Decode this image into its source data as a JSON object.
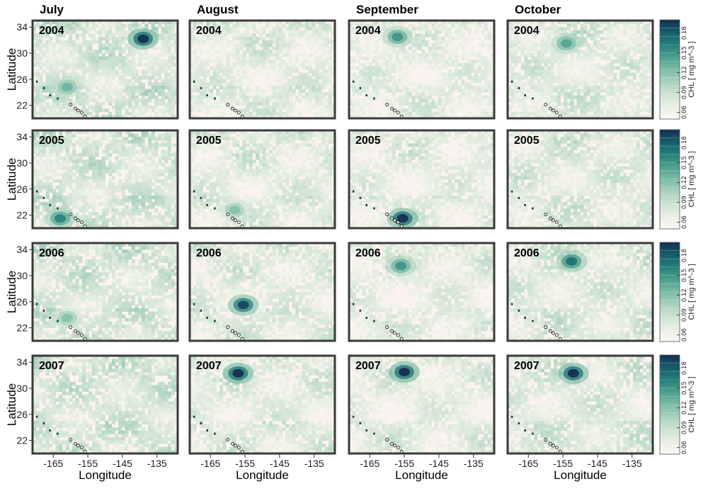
{
  "chart_data": {
    "type": "heatmap",
    "title": "",
    "xlabel": "Longitude",
    "ylabel": "Latitude",
    "columns": [
      "July",
      "August",
      "September",
      "October"
    ],
    "rows": [
      "2004",
      "2005",
      "2006",
      "2007"
    ],
    "xlim": [
      -171,
      -129
    ],
    "ylim": [
      20,
      35
    ],
    "x_ticks": [
      -165,
      -155,
      -145,
      -135
    ],
    "y_ticks": [
      22,
      26,
      30,
      34
    ],
    "colorbar": {
      "title": "CHL [ mg m^-3 ]",
      "ticks": [
        0.06,
        0.09,
        0.12,
        0.15,
        0.18
      ],
      "range": [
        0.05,
        0.2
      ],
      "colors": [
        "#fdf6f3",
        "#e8efe4",
        "#cfe3d2",
        "#a9d1bd",
        "#7cbba6",
        "#4d9f8f",
        "#257f7a",
        "#165d6b",
        "#152e52"
      ]
    },
    "grid": false,
    "blooms": [
      {
        "row": "2004",
        "col": "July",
        "lon": -139,
        "lat": 32.2,
        "chl": 0.2
      },
      {
        "row": "2004",
        "col": "July",
        "lon": -161,
        "lat": 24.8,
        "chl": 0.13
      },
      {
        "row": "2004",
        "col": "September",
        "lon": -157,
        "lat": 32.5,
        "chl": 0.15
      },
      {
        "row": "2004",
        "col": "October",
        "lon": -154,
        "lat": 31.5,
        "chl": 0.14
      },
      {
        "row": "2005",
        "col": "July",
        "lon": -163,
        "lat": 21.5,
        "chl": 0.16
      },
      {
        "row": "2005",
        "col": "August",
        "lon": -158,
        "lat": 22.8,
        "chl": 0.12
      },
      {
        "row": "2005",
        "col": "September",
        "lon": -155.5,
        "lat": 21.5,
        "chl": 0.2
      },
      {
        "row": "2006",
        "col": "July",
        "lon": -161,
        "lat": 23.5,
        "chl": 0.12
      },
      {
        "row": "2006",
        "col": "August",
        "lon": -155.5,
        "lat": 25.5,
        "chl": 0.19
      },
      {
        "row": "2006",
        "col": "September",
        "lon": -156,
        "lat": 31.5,
        "chl": 0.15
      },
      {
        "row": "2006",
        "col": "October",
        "lon": -152.5,
        "lat": 32.2,
        "chl": 0.17
      },
      {
        "row": "2007",
        "col": "August",
        "lon": -157,
        "lat": 32.3,
        "chl": 0.2
      },
      {
        "row": "2007",
        "col": "September",
        "lon": -155,
        "lat": 32.5,
        "chl": 0.2
      },
      {
        "row": "2007",
        "col": "October",
        "lon": -152,
        "lat": 32.3,
        "chl": 0.2
      }
    ]
  }
}
